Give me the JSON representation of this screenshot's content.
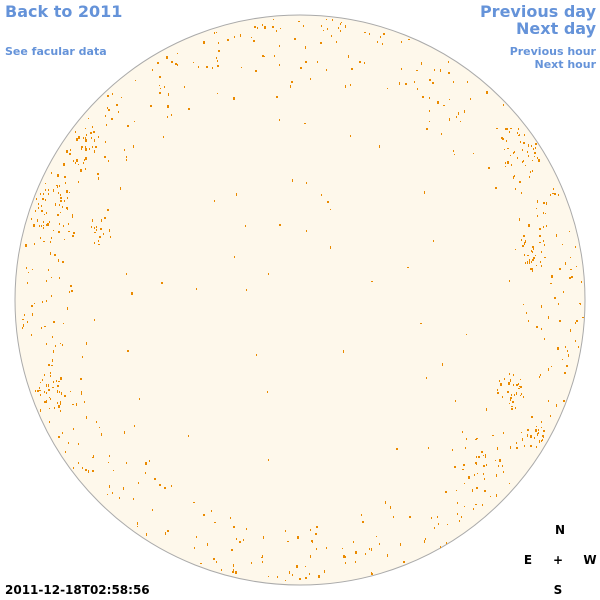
{
  "nav": {
    "back_label": "Back to 2011",
    "facular_label": "See facular data",
    "prev_day_label": "Previous day",
    "next_day_label": "Next day",
    "prev_hour_label": "Previous hour",
    "next_hour_label": "Next hour"
  },
  "compass": {
    "north": "N",
    "east": "E",
    "center": "+",
    "west": "W",
    "south": "S"
  },
  "timestamp": "2011-12-18T02:58:56",
  "colors": {
    "link": "#6593d9",
    "disk_fill": "#fef8eb",
    "disk_edge": "#aaaaaa",
    "plage": "#ea8a00"
  },
  "icons": {
    "solar_disk": "sun-disk-icon",
    "compass": "compass-rose-icon"
  }
}
